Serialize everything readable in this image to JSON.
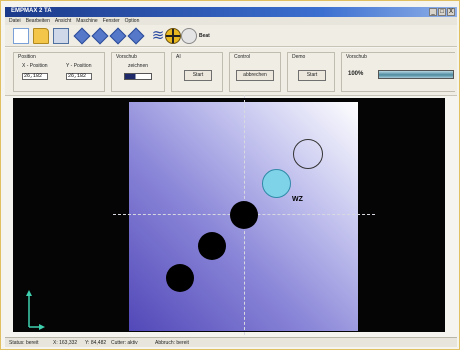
{
  "window": {
    "title": "EMPMAX 2 TA"
  },
  "window_controls": [
    "_",
    "□",
    "X"
  ],
  "menu": [
    "Datei",
    "Bearbeiten",
    "Ansicht",
    "Maschine",
    "Fenster",
    "Option"
  ],
  "toolbar": {
    "icons": [
      "new-document-icon",
      "open-folder-icon",
      "save-icon",
      "diamond-icon",
      "diamond-icon",
      "diamond-icon",
      "diamond-icon",
      "gear-icon",
      "crosshair-icon",
      "globe-icon"
    ],
    "end_label": "Beat"
  },
  "position": {
    "label": "Position",
    "x_label": "X - Position",
    "y_label": "Y - Position",
    "x_value": "26,182",
    "y_value": "26,182"
  },
  "vorschub_left": {
    "label": "Vorschub",
    "sub_label": "zeichnen",
    "value_fraction": 0.4
  },
  "ai": {
    "label": "AI",
    "button": "Start"
  },
  "control": {
    "label": "Control",
    "button": "abbrechen"
  },
  "demo": {
    "label": "Demo",
    "button": "Start"
  },
  "vorschub_right": {
    "label": "Vorschub",
    "percent": "100%",
    "value_fraction": 1.0
  },
  "workpiece": {
    "label": "WZ"
  },
  "status": {
    "state": "Status: bereit",
    "x": "X: 163,332",
    "y": "Y: 84,482",
    "cutter": "Cutter: aktiv",
    "extra": "Abbruch: bereit"
  },
  "colors": {
    "title_bar": "#1c3a8a",
    "workspace_bg": "#050505",
    "plate_light": "#ffffff",
    "plate_dark": "#5248b8",
    "active_hole": "#7fd3e8"
  }
}
